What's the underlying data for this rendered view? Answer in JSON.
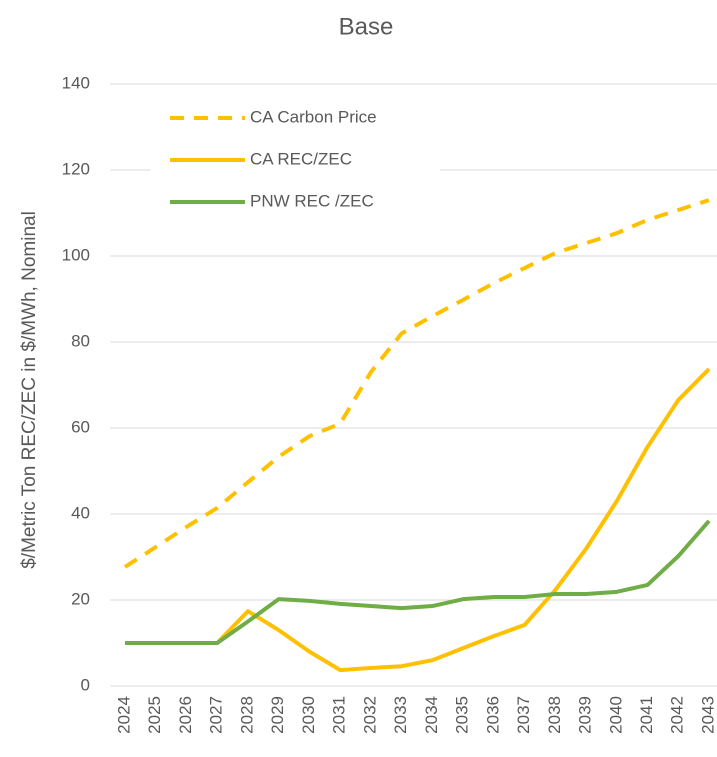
{
  "chart_data": {
    "type": "line",
    "title": "Base",
    "y_label": "$/Metric Ton  REC/ZEC in $/MWh, Nominal",
    "categories": [
      "2024",
      "2025",
      "2026",
      "2027",
      "2028",
      "2029",
      "2030",
      "2031",
      "2032",
      "2033",
      "2034",
      "2035",
      "2036",
      "2037",
      "2038",
      "2039",
      "2040",
      "2041",
      "2042",
      "2043"
    ],
    "series": [
      {
        "name": "CA Carbon Price",
        "color": "#FFC000",
        "style": "dashed",
        "values": [
          27.7,
          32.3,
          37,
          41.4,
          47.4,
          53.3,
          58.1,
          61,
          73,
          82,
          86,
          89.8,
          93.7,
          97.2,
          100.7,
          103,
          105.3,
          108.4,
          110.7,
          113
        ]
      },
      {
        "name": "CA REC/ZEC",
        "color": "#FFC000",
        "style": "solid",
        "values": [
          10,
          10,
          10,
          10,
          17.4,
          13,
          8,
          3.7,
          4.2,
          4.6,
          6,
          8.8,
          11.6,
          14.2,
          22.3,
          31.9,
          43,
          55.6,
          66.5,
          73.7
        ]
      },
      {
        "name": "PNW REC /ZEC",
        "color": "#70AD47",
        "style": "solid",
        "values": [
          10,
          10,
          10,
          10,
          15,
          20.2,
          19.8,
          19.1,
          18.6,
          18.1,
          18.6,
          20.2,
          20.7,
          20.7,
          21.4,
          21.4,
          21.9,
          23.5,
          30.2,
          38.4
        ]
      }
    ],
    "ylim": [
      0,
      140
    ],
    "yticks": [
      0,
      20,
      40,
      60,
      80,
      100,
      120,
      140
    ],
    "grid": true,
    "legend": "upper left"
  }
}
